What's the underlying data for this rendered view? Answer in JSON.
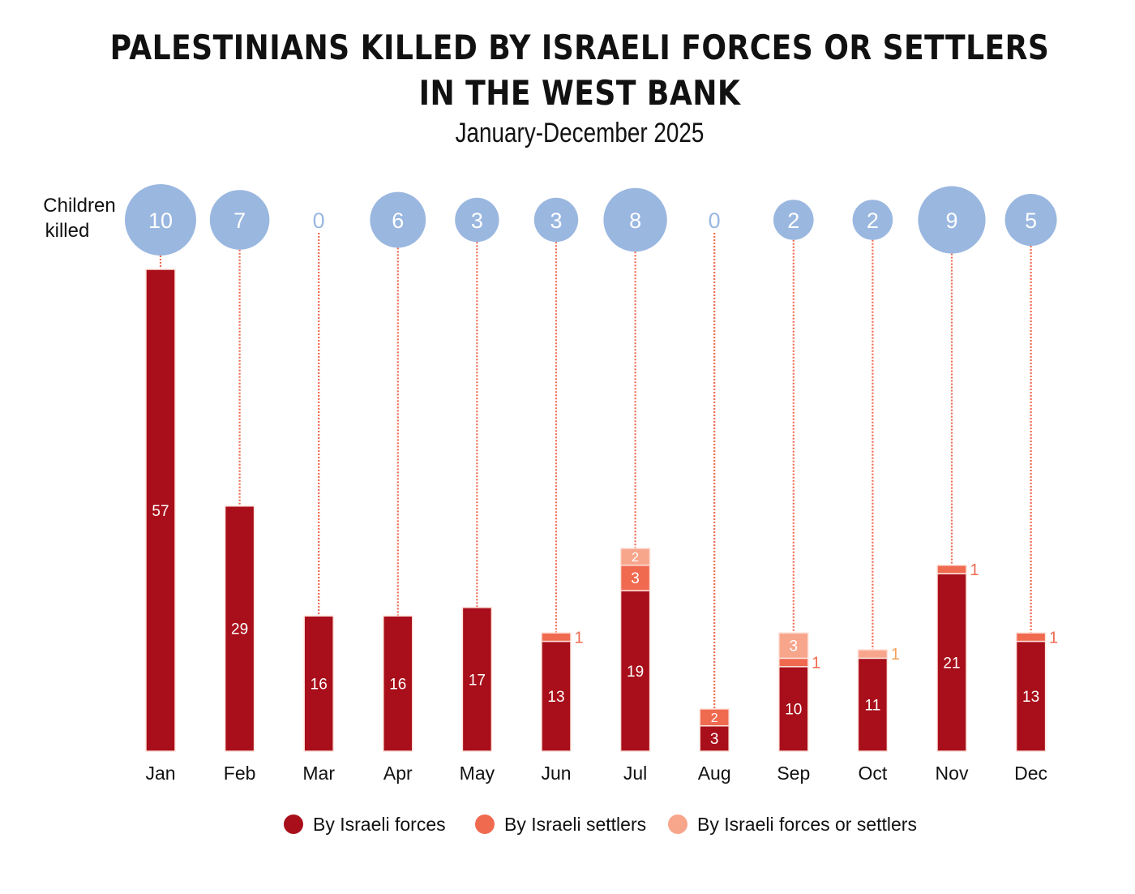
{
  "chart_data": {
    "type": "bar",
    "stacked": true,
    "title": "PALESTINIANS KILLED BY ISRAELI FORCES OR SETTLERS",
    "title_line2": "IN THE WEST BANK",
    "subtitle": "January-December 2025",
    "xlabel": "",
    "ylabel": "",
    "categories": [
      "Jan",
      "Feb",
      "Mar",
      "Apr",
      "May",
      "Jun",
      "Jul",
      "Aug",
      "Sep",
      "Oct",
      "Nov",
      "Dec"
    ],
    "series": [
      {
        "name": "By Israeli forces",
        "color": "#a80f1a",
        "values": [
          57,
          29,
          16,
          16,
          17,
          13,
          19,
          3,
          10,
          11,
          21,
          13
        ]
      },
      {
        "name": "By Israeli settlers",
        "color": "#f06a50",
        "values": [
          0,
          0,
          0,
          0,
          0,
          1,
          3,
          2,
          1,
          0,
          1,
          1
        ]
      },
      {
        "name": "By Israeli forces or settlers",
        "color": "#f7a68c",
        "values": [
          0,
          0,
          0,
          0,
          0,
          0,
          2,
          0,
          3,
          1,
          0,
          0
        ]
      }
    ],
    "children_killed": {
      "label_line1": "Children",
      "label_line2": "killed",
      "color": "#9ab7e0",
      "values": [
        10,
        7,
        0,
        6,
        3,
        3,
        8,
        0,
        2,
        2,
        9,
        5
      ]
    },
    "ylim": [
      0,
      57
    ],
    "grid": false,
    "legend_position": "bottom"
  }
}
